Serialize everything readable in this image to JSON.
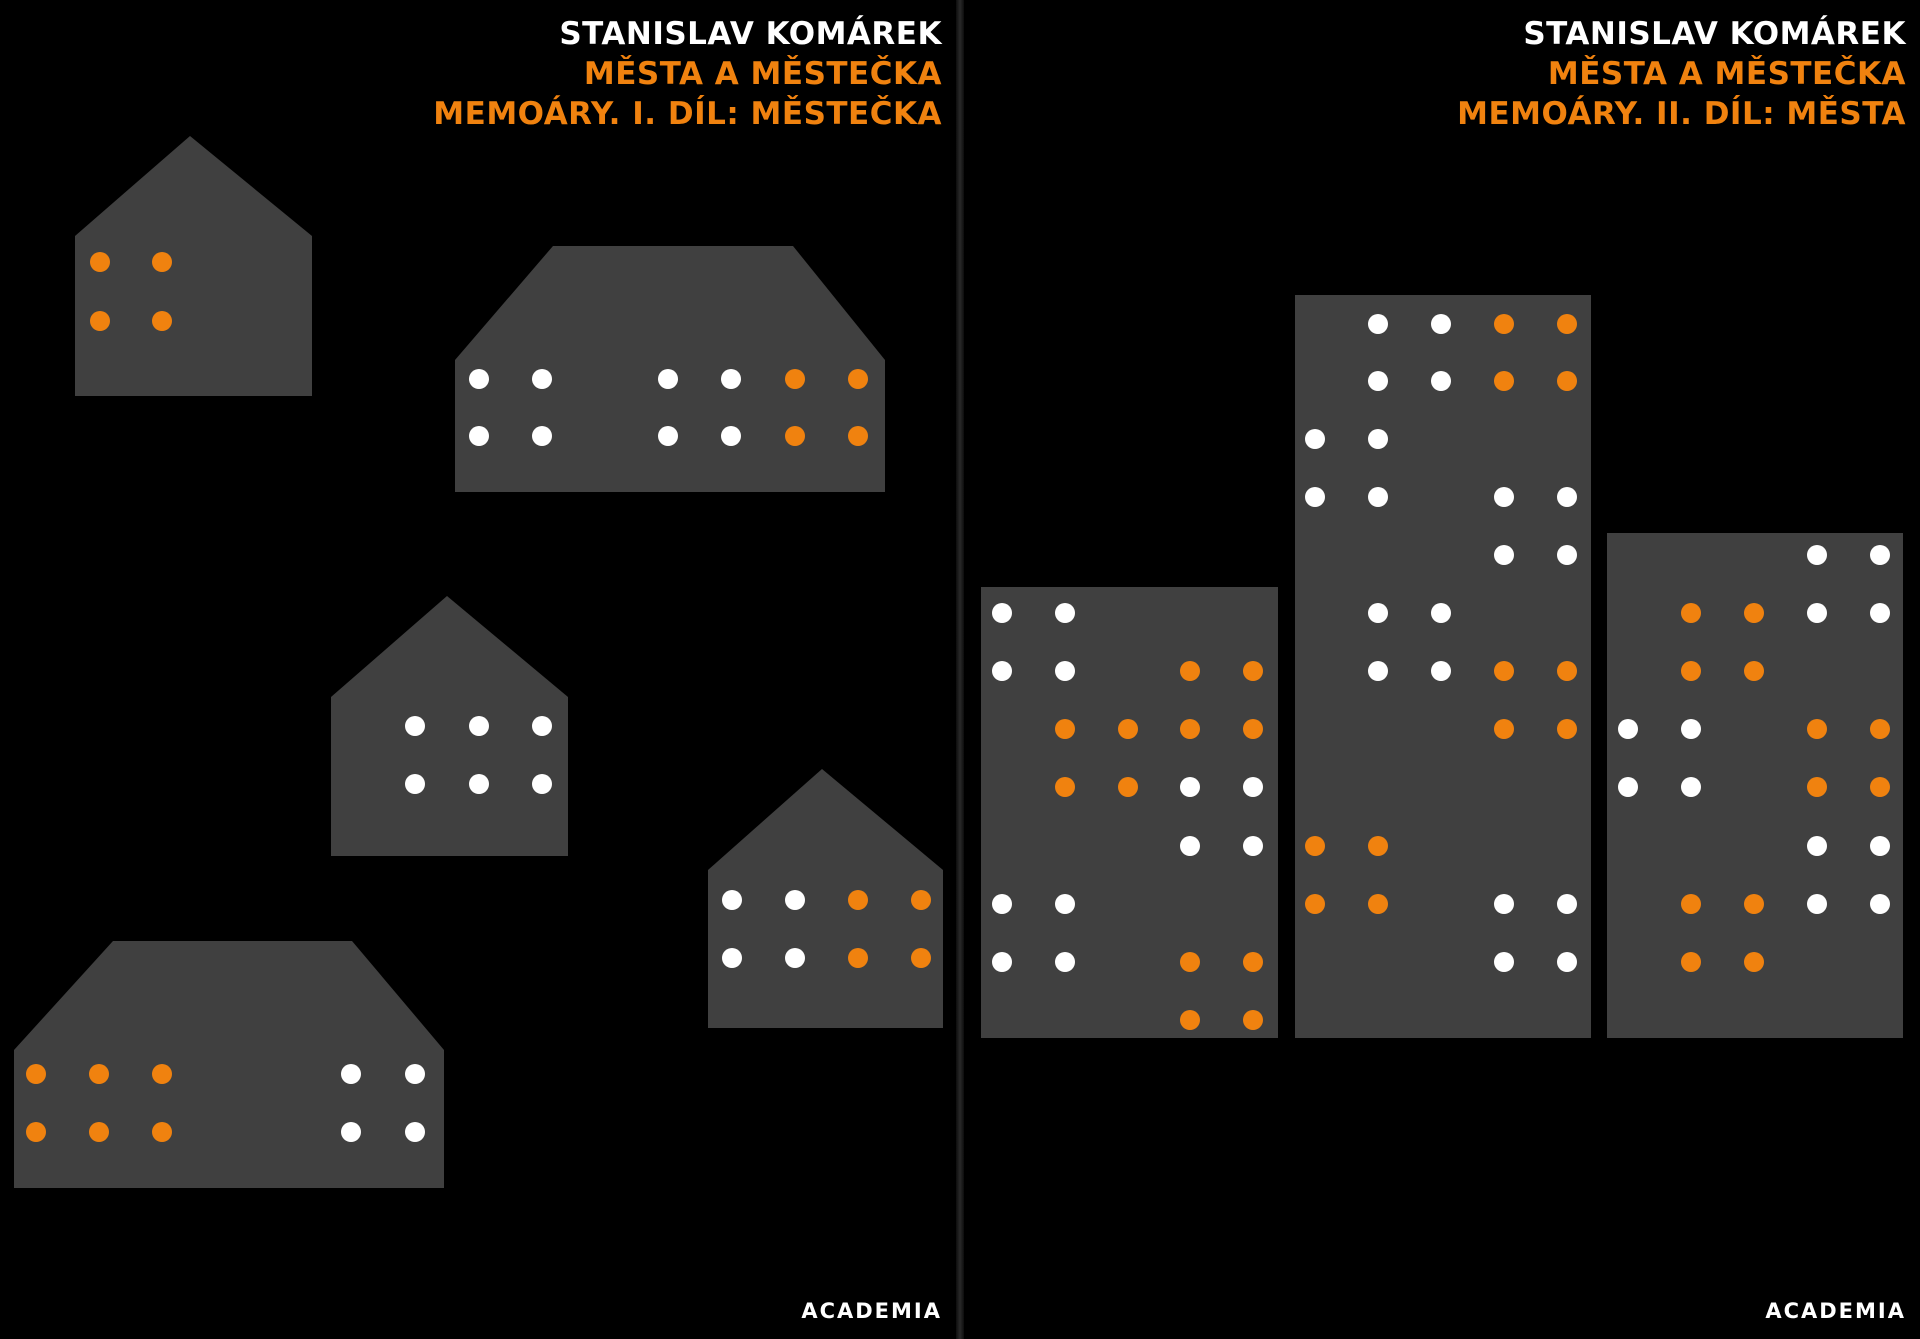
{
  "colors": {
    "background": "#000000",
    "building": "#404040",
    "light_on": "#f0820f",
    "light_white": "#ffffff"
  },
  "left_cover": {
    "author": "STANISLAV KOMÁREK",
    "title": "MĚSTA A MĚSTEČKA",
    "subtitle": "MEMOÁRY. I. DÍL: MĚSTEČKA",
    "publisher": "ACADEMIA",
    "illustration": "small town houses with lit windows"
  },
  "right_cover": {
    "author": "STANISLAV KOMÁREK",
    "title": "MĚSTA A MĚSTEČKA",
    "subtitle": "MEMOÁRY. II. DÍL: MĚSTA",
    "publisher": "ACADEMIA",
    "illustration": "city towers with lit windows"
  }
}
